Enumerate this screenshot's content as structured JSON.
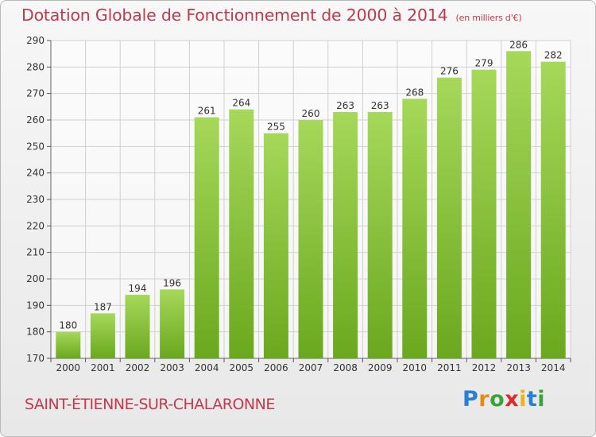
{
  "title": "Dotation Globale de Fonctionnement de 2000 à 2014",
  "unit_note": "(en milliers d'€)",
  "commune": "SAINT-ÉTIENNE-SUR-CHALARONNE",
  "logo": {
    "text": "Proxiti",
    "letter_colors": [
      "#2a7fd4",
      "#e88a1a",
      "#3aa43a",
      "#e02a2a",
      "#e8b41a",
      "#2a7fd4",
      "#3aa43a"
    ]
  },
  "colors": {
    "text_accent": "#c03a4e",
    "bar_light": "#a6d85a",
    "bar_dark": "#6aa81e",
    "grid": "#d0d0d0"
  },
  "chart_data": {
    "type": "bar",
    "title": "Dotation Globale de Fonctionnement de 2000 à 2014",
    "subtitle": "(en milliers d'€)",
    "categories": [
      "2000",
      "2001",
      "2002",
      "2003",
      "2004",
      "2005",
      "2006",
      "2007",
      "2008",
      "2009",
      "2010",
      "2011",
      "2012",
      "2013",
      "2014"
    ],
    "values": [
      180,
      187,
      194,
      196,
      261,
      264,
      255,
      260,
      263,
      263,
      268,
      276,
      279,
      286,
      282
    ],
    "ylim": [
      170,
      290
    ],
    "yticks": [
      170,
      180,
      190,
      200,
      210,
      220,
      230,
      240,
      250,
      260,
      270,
      280,
      290
    ],
    "grid": true,
    "data_labels": true
  }
}
